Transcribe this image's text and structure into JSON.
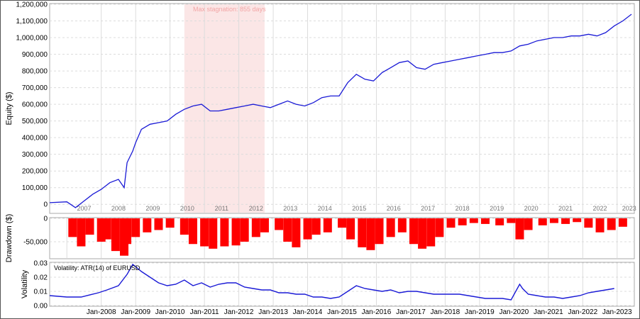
{
  "colors": {
    "equity": "#1a1ad6",
    "drawdown": "#ff0000",
    "volatility": "#1a1ad6",
    "stagnation": "#fbe3e3",
    "grid": "#dcdcdc"
  },
  "chart_data": [
    {
      "type": "line",
      "panel": "equity",
      "ylabel": "Equity ($)",
      "ylim": [
        -50000,
        1200000
      ],
      "y_ticks": [
        "0",
        "100,000",
        "200,000",
        "300,000",
        "400,000",
        "500,000",
        "600,000",
        "700,000",
        "800,000",
        "900,000",
        "1,000,000",
        "1,100,000",
        "1,200,000"
      ],
      "x_labels": [
        "2007",
        "2008",
        "2009",
        "2010",
        "2011",
        "2012",
        "2013",
        "2014",
        "2015",
        "2016",
        "2017",
        "2018",
        "2019",
        "2020",
        "2021",
        "2022",
        "2023"
      ],
      "annotation": "Max stagnation: 855 days",
      "stagnation_period": [
        "2010-06",
        "2012-10"
      ],
      "grid": true,
      "series": [
        {
          "x": [
            "2006-07",
            "2007-01",
            "2007-04",
            "2007-07",
            "2007-10",
            "2008-01",
            "2008-04",
            "2008-07",
            "2008-09",
            "2008-10",
            "2008-12",
            "2009-01",
            "2009-03",
            "2009-06",
            "2009-09",
            "2009-12",
            "2010-03",
            "2010-06",
            "2010-09",
            "2010-12",
            "2011-03",
            "2011-06",
            "2011-09",
            "2011-12",
            "2012-03",
            "2012-06",
            "2012-09",
            "2012-12",
            "2013-03",
            "2013-06",
            "2013-09",
            "2013-12",
            "2014-03",
            "2014-06",
            "2014-09",
            "2014-12",
            "2015-03",
            "2015-06",
            "2015-09",
            "2015-12",
            "2016-03",
            "2016-06",
            "2016-09",
            "2016-12",
            "2017-03",
            "2017-06",
            "2017-09",
            "2017-12",
            "2018-03",
            "2018-06",
            "2018-09",
            "2018-12",
            "2019-03",
            "2019-06",
            "2019-09",
            "2019-12",
            "2020-03",
            "2020-06",
            "2020-09",
            "2020-12",
            "2021-03",
            "2021-06",
            "2021-09",
            "2021-12",
            "2022-03",
            "2022-06",
            "2022-09",
            "2022-12",
            "2023-03",
            "2023-06"
          ],
          "values": [
            10000,
            15000,
            -20000,
            20000,
            60000,
            90000,
            130000,
            150000,
            100000,
            250000,
            320000,
            370000,
            450000,
            480000,
            490000,
            500000,
            540000,
            570000,
            590000,
            600000,
            560000,
            560000,
            570000,
            580000,
            590000,
            600000,
            590000,
            580000,
            600000,
            620000,
            600000,
            590000,
            610000,
            640000,
            650000,
            650000,
            730000,
            780000,
            750000,
            740000,
            790000,
            820000,
            850000,
            860000,
            820000,
            810000,
            840000,
            850000,
            860000,
            870000,
            880000,
            890000,
            900000,
            910000,
            910000,
            920000,
            950000,
            960000,
            980000,
            990000,
            1000000,
            1000000,
            1010000,
            1010000,
            1020000,
            1010000,
            1030000,
            1070000,
            1100000,
            1140000
          ]
        }
      ]
    },
    {
      "type": "bar",
      "panel": "drawdown",
      "ylabel": "Drawdown ($)",
      "ylim": [
        -85000,
        0
      ],
      "y_ticks": [
        "0",
        "-50,000"
      ],
      "series": [
        {
          "x": [
            "2007-03",
            "2007-06",
            "2007-09",
            "2008-01",
            "2008-03",
            "2008-06",
            "2008-09",
            "2008-10",
            "2009-01",
            "2009-05",
            "2009-09",
            "2010-01",
            "2010-06",
            "2010-09",
            "2011-01",
            "2011-04",
            "2011-08",
            "2011-12",
            "2012-03",
            "2012-07",
            "2012-10",
            "2013-03",
            "2013-06",
            "2013-09",
            "2014-01",
            "2014-04",
            "2014-08",
            "2015-01",
            "2015-04",
            "2015-08",
            "2015-11",
            "2016-02",
            "2016-06",
            "2016-10",
            "2017-02",
            "2017-05",
            "2017-08",
            "2017-11",
            "2018-03",
            "2018-07",
            "2018-11",
            "2019-03",
            "2019-08",
            "2019-12",
            "2020-03",
            "2020-06",
            "2020-11",
            "2021-03",
            "2021-07",
            "2021-11",
            "2022-03",
            "2022-07",
            "2022-11",
            "2023-03"
          ],
          "values": [
            -40000,
            -60000,
            -35000,
            -50000,
            -45000,
            -70000,
            -80000,
            -55000,
            -40000,
            -30000,
            -25000,
            -20000,
            -35000,
            -55000,
            -60000,
            -65000,
            -60000,
            -58000,
            -50000,
            -40000,
            -30000,
            -25000,
            -50000,
            -62000,
            -45000,
            -35000,
            -30000,
            -20000,
            -45000,
            -62000,
            -68000,
            -55000,
            -40000,
            -30000,
            -55000,
            -65000,
            -60000,
            -40000,
            -20000,
            -15000,
            -10000,
            -12000,
            -15000,
            -10000,
            -45000,
            -25000,
            -15000,
            -10000,
            -12000,
            -8000,
            -20000,
            -30000,
            -25000,
            -18000
          ]
        }
      ]
    },
    {
      "type": "line",
      "panel": "volatility",
      "ylabel": "Volatility",
      "ylim": [
        0,
        0.03
      ],
      "y_ticks": [
        "0.00",
        "0.01",
        "0.02",
        "0.03"
      ],
      "x_labels": [
        "Jan-2008",
        "Jan-2009",
        "Jan-2010",
        "Jan-2011",
        "Jan-2012",
        "Jan-2013",
        "Jan-2014",
        "Jan-2015",
        "Jan-2016",
        "Jan-2017",
        "Jan-2018",
        "Jan-2019",
        "Jan-2020",
        "Jan-2021",
        "Jan-2022",
        "Jan-2023"
      ],
      "series": [
        {
          "name": "Volatility: ATR(14) of EURUSD",
          "x": [
            "2006-07",
            "2007-01",
            "2007-06",
            "2007-12",
            "2008-03",
            "2008-07",
            "2008-10",
            "2008-12",
            "2009-03",
            "2009-06",
            "2009-09",
            "2009-12",
            "2010-03",
            "2010-06",
            "2010-09",
            "2010-12",
            "2011-03",
            "2011-06",
            "2011-09",
            "2011-12",
            "2012-03",
            "2012-06",
            "2012-09",
            "2012-12",
            "2013-03",
            "2013-06",
            "2013-09",
            "2013-12",
            "2014-03",
            "2014-06",
            "2014-09",
            "2014-12",
            "2015-03",
            "2015-06",
            "2015-09",
            "2015-12",
            "2016-03",
            "2016-06",
            "2016-09",
            "2016-12",
            "2017-03",
            "2017-06",
            "2017-09",
            "2017-12",
            "2018-03",
            "2018-06",
            "2018-09",
            "2018-12",
            "2019-03",
            "2019-06",
            "2019-09",
            "2019-12",
            "2020-03",
            "2020-04",
            "2020-06",
            "2020-09",
            "2020-12",
            "2021-03",
            "2021-06",
            "2021-09",
            "2021-12",
            "2022-03",
            "2022-06",
            "2022-09",
            "2022-12"
          ],
          "values": [
            0.007,
            0.006,
            0.006,
            0.009,
            0.011,
            0.014,
            0.022,
            0.029,
            0.024,
            0.02,
            0.016,
            0.014,
            0.015,
            0.018,
            0.014,
            0.016,
            0.013,
            0.015,
            0.016,
            0.016,
            0.013,
            0.012,
            0.011,
            0.011,
            0.009,
            0.009,
            0.008,
            0.008,
            0.006,
            0.006,
            0.005,
            0.006,
            0.01,
            0.014,
            0.012,
            0.011,
            0.01,
            0.011,
            0.009,
            0.01,
            0.01,
            0.009,
            0.008,
            0.008,
            0.008,
            0.008,
            0.007,
            0.006,
            0.005,
            0.005,
            0.005,
            0.004,
            0.015,
            0.012,
            0.008,
            0.007,
            0.006,
            0.006,
            0.005,
            0.006,
            0.007,
            0.009,
            0.01,
            0.011,
            0.012
          ]
        }
      ]
    }
  ]
}
